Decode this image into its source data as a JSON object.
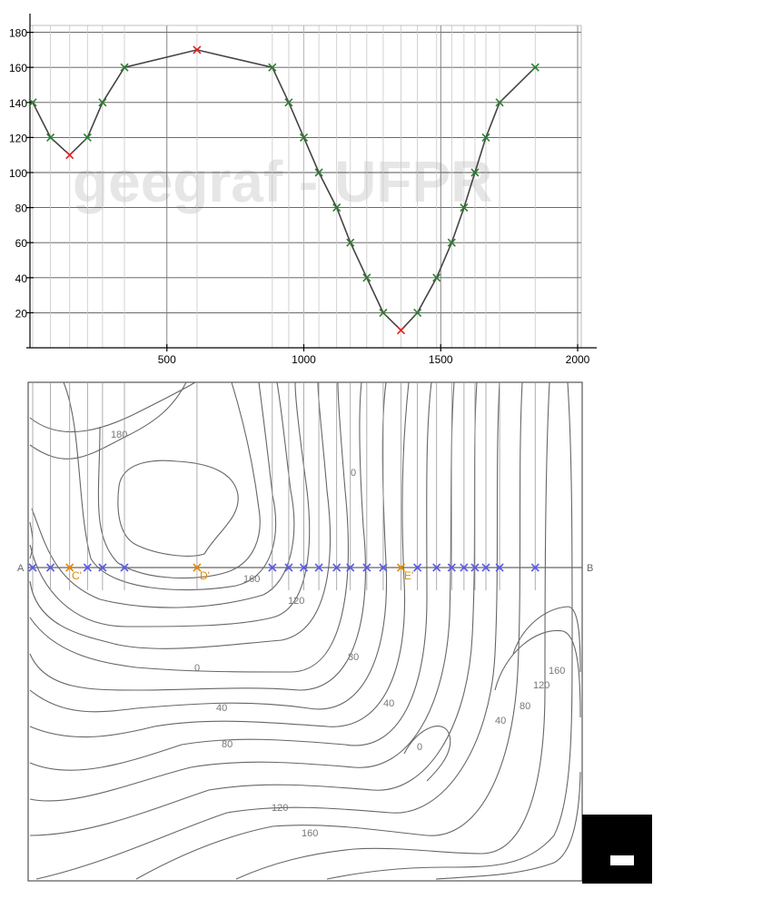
{
  "watermark": "geegraf - UFPR",
  "chart_data": {
    "type": "line",
    "title": "",
    "xlabel": "",
    "ylabel": "",
    "xlim": [
      0,
      2000
    ],
    "ylim": [
      0,
      190
    ],
    "x_ticks": [
      500,
      1000,
      1500,
      2000
    ],
    "y_ticks": [
      20,
      40,
      60,
      80,
      100,
      120,
      140,
      160,
      180
    ],
    "grid": true,
    "series": [
      {
        "x": [
          10,
          75,
          145,
          210,
          265,
          345,
          610,
          885,
          945,
          1000,
          1055,
          1120,
          1170,
          1230,
          1290,
          1355,
          1415,
          1485,
          1540,
          1585,
          1625,
          1665,
          1715,
          1845
        ],
        "y": [
          140,
          120,
          110,
          120,
          140,
          160,
          170,
          160,
          140,
          120,
          100,
          80,
          60,
          40,
          20,
          10,
          20,
          40,
          60,
          80,
          100,
          120,
          140,
          160
        ],
        "marker_colors": [
          "#2e7d32",
          "#2e7d32",
          "#e02020",
          "#2e7d32",
          "#2e7d32",
          "#2e7d32",
          "#e02020",
          "#2e7d32",
          "#2e7d32",
          "#2e7d32",
          "#2e7d32",
          "#2e7d32",
          "#2e7d32",
          "#2e7d32",
          "#2e7d32",
          "#e02020",
          "#2e7d32",
          "#2e7d32",
          "#2e7d32",
          "#2e7d32",
          "#2e7d32",
          "#2e7d32",
          "#2e7d32",
          "#2e7d32"
        ]
      }
    ]
  },
  "map": {
    "section_start": "A",
    "section_end": "B",
    "special_points": [
      {
        "label": "C'",
        "x": 145
      },
      {
        "label": "D'",
        "x": 610
      },
      {
        "label": "E'",
        "x": 1355
      }
    ],
    "contour_labels": [
      {
        "text": "180"
      },
      {
        "text": "0"
      },
      {
        "text": "160"
      },
      {
        "text": "120"
      },
      {
        "text": "80"
      },
      {
        "text": "0"
      },
      {
        "text": "40"
      },
      {
        "text": "40"
      },
      {
        "text": "80"
      },
      {
        "text": "160"
      },
      {
        "text": "120"
      },
      {
        "text": "80"
      },
      {
        "text": "40"
      },
      {
        "text": "0"
      },
      {
        "text": "120"
      },
      {
        "text": "160"
      }
    ],
    "colors": {
      "section_marker": "#5a5ae6",
      "special_marker": "#e08a00",
      "contour": "#666666"
    }
  }
}
